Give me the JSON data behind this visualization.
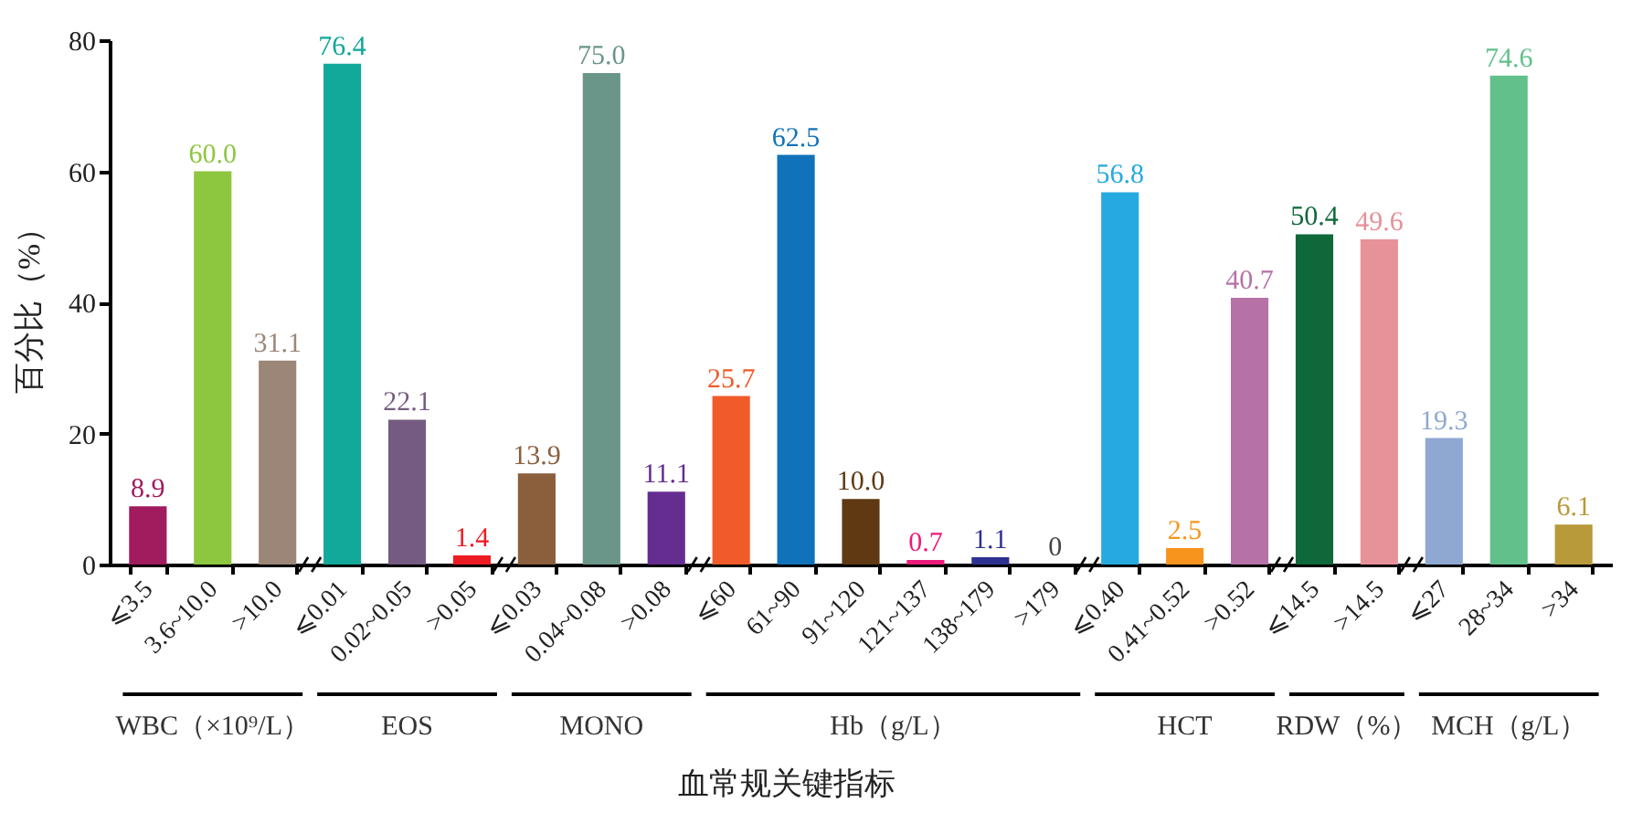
{
  "chart_data": {
    "type": "bar",
    "xlabel": "血常规关键指标",
    "ylabel": "百分比（%）",
    "categories": [
      "⩽3.5",
      "3.6~10.0",
      ">10.0",
      "⩽0.01",
      "0.02~0.05",
      ">0.05",
      "⩽0.03",
      "0.04~0.08",
      ">0.08",
      "⩽60",
      "61~90",
      "91~120",
      "121~137",
      "138~179",
      ">179",
      "⩽0.40",
      "0.41~0.52",
      ">0.52",
      "⩽14.5",
      ">14.5",
      "⩽27",
      "28~34",
      ">34"
    ],
    "values": [
      8.9,
      60.0,
      31.1,
      76.4,
      22.1,
      1.4,
      13.9,
      75.0,
      11.1,
      25.7,
      62.5,
      10.0,
      0.7,
      1.1,
      0,
      56.8,
      2.5,
      40.7,
      50.4,
      49.6,
      19.3,
      74.6,
      6.1
    ],
    "value_labels": [
      "8.9",
      "60.0",
      "31.1",
      "76.4",
      "22.1",
      "1.4",
      "13.9",
      "75.0",
      "11.1",
      "25.7",
      "62.5",
      "10.0",
      "0.7",
      "1.1",
      "0",
      "56.8",
      "2.5",
      "40.7",
      "50.4",
      "49.6",
      "19.3",
      "74.6",
      "6.1"
    ],
    "colors": [
      "#a01c5e",
      "#8dc63f",
      "#9b8677",
      "#12a89a",
      "#755b82",
      "#ed1c24",
      "#8b5e3c",
      "#6a9689",
      "#662d91",
      "#f15a29",
      "#1072ba",
      "#603913",
      "#ec1b79",
      "#2e3192",
      "#444444",
      "#26a9e0",
      "#f7941d",
      "#b672a6",
      "#0f6839",
      "#e79198",
      "#8fa8d1",
      "#62c18a",
      "#b89a3b"
    ],
    "ylim": [
      0,
      80
    ],
    "yticks": [
      0,
      20,
      40,
      60,
      80
    ],
    "annotations": [
      "WBC（×10⁹/L）",
      "EOS",
      "MONO",
      "Hb（g/L）",
      "HCT",
      "RDW（%）",
      "MCH（g/L）"
    ]
  }
}
